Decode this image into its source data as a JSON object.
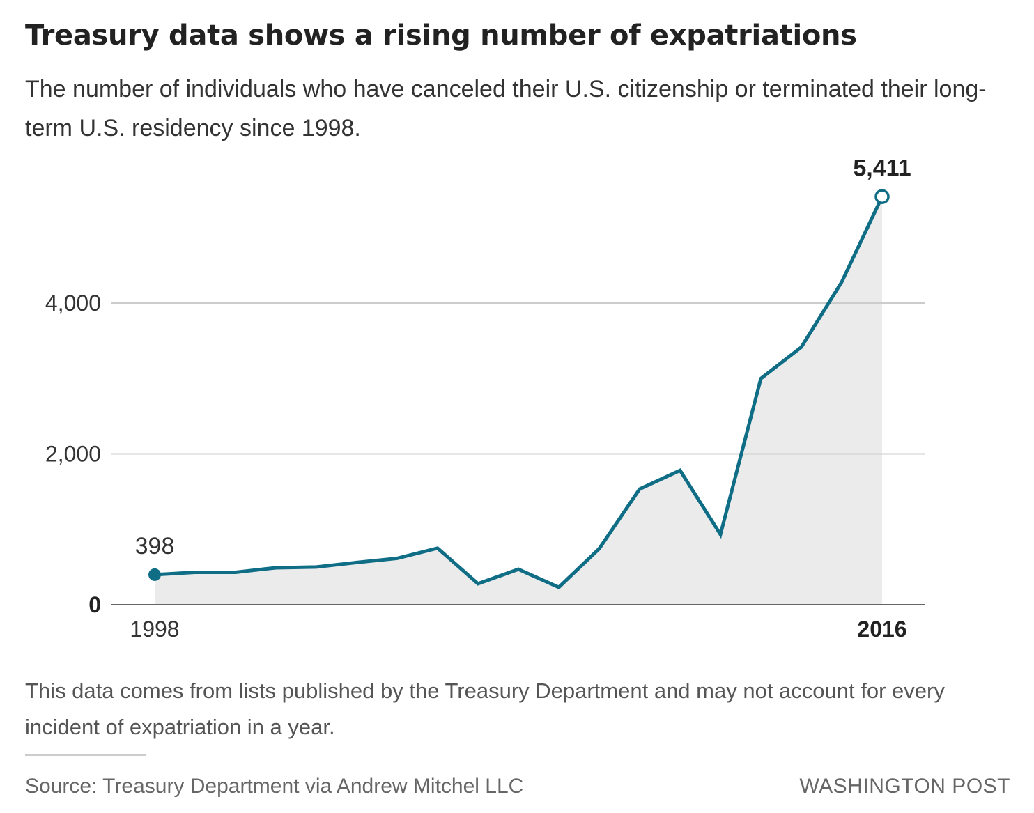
{
  "header": {
    "title": "Treasury data shows a rising number of expatriations",
    "subtitle": "The number of individuals who have canceled their U.S. citizenship or terminated their long-term U.S. residency since 1998."
  },
  "chart_data": {
    "type": "area",
    "x": [
      1998,
      1999,
      2000,
      2001,
      2002,
      2003,
      2004,
      2005,
      2006,
      2007,
      2008,
      2009,
      2010,
      2011,
      2012,
      2013,
      2014,
      2015,
      2016
    ],
    "series": [
      {
        "values": [
          398,
          430,
          430,
          490,
          500,
          560,
          615,
          750,
          278,
          470,
          231,
          743,
          1534,
          1781,
          932,
          2999,
          3415,
          4279,
          5411
        ]
      }
    ],
    "ylim": [
      0,
      5600
    ],
    "y_ticks": [
      {
        "value": 0,
        "label": "0"
      },
      {
        "value": 2000,
        "label": "2,000"
      },
      {
        "value": 4000,
        "label": "4,000"
      }
    ],
    "x_tick_labels": [
      {
        "value": 1998,
        "label": "1998"
      },
      {
        "value": 2016,
        "label": "2016"
      }
    ],
    "annotations": [
      {
        "x": 1998,
        "y": 398,
        "label": "398"
      },
      {
        "x": 2016,
        "y": 5411,
        "label": "5,411"
      }
    ],
    "grid": true,
    "colors": {
      "line": "#0f6e86",
      "area": "#ebebeb",
      "grid": "#cccccc",
      "axis": "#666666"
    }
  },
  "footer": {
    "note": "This data comes from lists published by the Treasury Department and may not account for every incident of expatriation in a year.",
    "source": "Source: Treasury Department via Andrew Mitchel LLC",
    "credit": "WASHINGTON POST"
  }
}
